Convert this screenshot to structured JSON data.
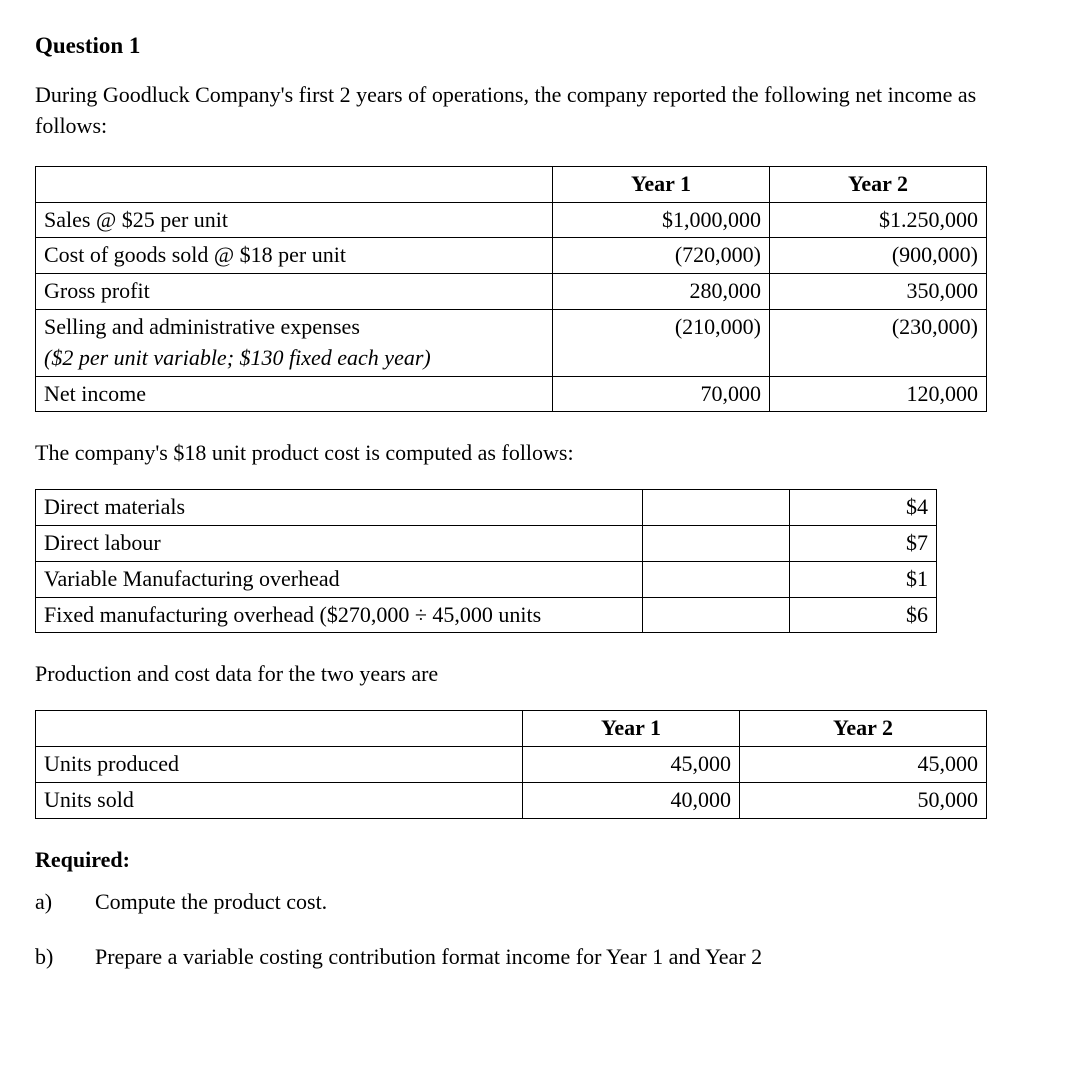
{
  "heading": "Question 1",
  "intro": "During Goodluck Company's first 2 years of operations, the company reported the following net income as follows:",
  "table1": {
    "columns": [
      "",
      "Year 1",
      "Year 2"
    ],
    "rows": [
      {
        "label": "Sales @ $25 per unit",
        "note": "",
        "y1": "$1,000,000",
        "y2": "$1.250,000"
      },
      {
        "label": "Cost of goods sold @ $18 per unit",
        "note": "",
        "y1": "(720,000)",
        "y2": "(900,000)"
      },
      {
        "label": "Gross profit",
        "note": "",
        "y1": "280,000",
        "y2": "350,000"
      },
      {
        "label": "Selling and administrative expenses",
        "note": "($2 per unit variable; $130 fixed each year)",
        "y1": "(210,000)",
        "y2": "(230,000)"
      },
      {
        "label": "Net income",
        "note": "",
        "y1": "70,000",
        "y2": "120,000"
      }
    ]
  },
  "mid1": "The company's $18 unit product cost is computed as follows:",
  "table2": {
    "rows": [
      {
        "label": "Direct materials",
        "val": "$4"
      },
      {
        "label": "Direct labour",
        "val": "$7"
      },
      {
        "label": "Variable Manufacturing overhead",
        "val": "$1"
      },
      {
        "label": "Fixed manufacturing overhead ($270,000 ÷ 45,000 units",
        "val": "$6"
      }
    ]
  },
  "mid2": "Production and cost data for the two years are",
  "table3": {
    "columns": [
      "",
      "Year 1",
      "Year 2"
    ],
    "rows": [
      {
        "label": "Units produced",
        "y1": "45,000",
        "y2": "45,000"
      },
      {
        "label": "Units sold",
        "y1": "40,000",
        "y2": "50,000"
      }
    ]
  },
  "required_label": "Required:",
  "required": [
    {
      "letter": "a)",
      "text": "Compute the product cost."
    },
    {
      "letter": "b)",
      "text": "Prepare a variable costing contribution format income for Year 1 and Year 2"
    }
  ]
}
